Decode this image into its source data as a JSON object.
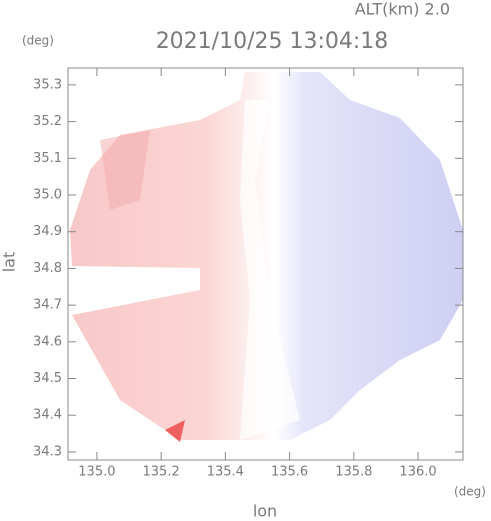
{
  "chart_data": {
    "type": "radar-field",
    "subtitle": "ALT(km) 2.0",
    "title": "2021/10/25 13:04:18",
    "y_unit": "(deg)",
    "x_unit": "(deg)",
    "x_label": "lon",
    "y_label": "lat",
    "xlim": [
      134.91,
      136.14
    ],
    "ylim": [
      34.278,
      35.346
    ],
    "xticks": [
      {
        "value": 135,
        "label": "135.0"
      },
      135.2,
      135.4,
      135.6,
      135.8,
      {
        "value": 136,
        "label": "136.0"
      }
    ],
    "yticks": [
      34.3,
      34.4,
      34.5,
      34.6,
      34.7,
      34.8,
      34.9,
      {
        "value": 35,
        "label": "35.0"
      },
      35.1,
      35.2,
      35.3
    ]
  }
}
